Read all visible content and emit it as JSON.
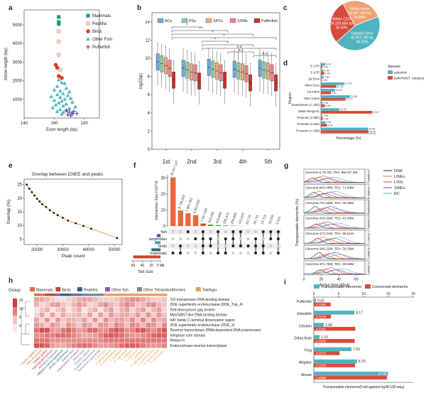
{
  "panels": {
    "a": {
      "letter": "a",
      "legend": [
        "Mammals",
        "Reptilia",
        "Birds",
        "Other Fish",
        "Pufferfish"
      ],
      "xlabel": "Exon length (bp)",
      "ylabel": "Intron length (bp)",
      "xticks": [
        "140",
        "160",
        "180"
      ],
      "yticks": [
        "1000",
        "2000",
        "3000",
        "4000",
        "5000"
      ]
    },
    "b": {
      "letter": "b",
      "legend": [
        "ACs",
        "PSs",
        "SPCs",
        "SSMs",
        "Pufferfish"
      ],
      "ylabel": "log2(bp)",
      "xticks": [
        "1st",
        "2nd",
        "3rd",
        "4th",
        "5th"
      ],
      "yticks": [
        "0",
        "2",
        "4",
        "6",
        "8",
        "10",
        "12",
        "14"
      ],
      "sig_labels": [
        "*",
        "*",
        "*",
        "*",
        "*",
        "*",
        "n.s",
        "n.s",
        "n.s"
      ]
    },
    "c": {
      "letter": "c",
      "slices": [
        {
          "label": "Outside Gene",
          "value": "40,952,700 bp",
          "pct": "44.26%"
        },
        {
          "label": "Within Intron",
          "value": "24,947,183 bp",
          "pct": "26.84%"
        },
        {
          "label": "Within CDS",
          "value": "26,328,684 bp",
          "pct": "28.40%"
        }
      ]
    },
    "d": {
      "letter": "d",
      "xlabel": "Percentage (%)",
      "ylabel": "Region",
      "legend_title": "Species",
      "legend": [
        "zebrafish",
        "pufferfish(T. rubripes)"
      ]
    },
    "e": {
      "letter": "e",
      "title": "Overlap between CNEE and peaks",
      "xlabel": "Peak count",
      "ylabel": "Overlap (%)",
      "xticks": [
        "20000",
        "30000",
        "40000",
        "50000"
      ],
      "yticks": [
        "5",
        "10",
        "15",
        "20",
        "25"
      ]
    },
    "f": {
      "letter": "f",
      "ylabel": "Intersection Size (×10^3)",
      "xlabel": "Set size",
      "xticks": [
        "60",
        "40",
        "20",
        "0 Mb"
      ],
      "set_ticks": [
        "0",
        "10",
        "20",
        "30"
      ],
      "sets": [
        "fish",
        "amphibian",
        "birds",
        "mammals"
      ]
    },
    "g": {
      "letter": "g",
      "legend": [
        "DNA",
        "LINEs",
        "LTRs",
        "SINEs",
        "RC"
      ],
      "xlabel": "Active time (Mya)",
      "ylabel": "Transposable elements (%)",
      "xticks": [
        "0",
        "20",
        "40",
        "60"
      ],
      "rows": [
        {
          "genome": "Genome:2.76 Gb; TEs: 650.87 Mb",
          "species": "H. sapiens"
        },
        {
          "genome": "Genome:863.48M; TEs: 71.83M",
          "species": "G. gallus"
        },
        {
          "genome": "Genome:731.62M; TEs: 48.38M",
          "species": "A. mississippiensis"
        },
        {
          "genome": "Genome:428.43M; TEs: 43.40M",
          "species": "X. tropicalis"
        },
        {
          "genome": "Genome:474.31M; TEs: 36.51M",
          "species": "D. rerio"
        },
        {
          "genome": "Genome:346.22M; TEs: 28.30M",
          "species": "O. latipes"
        },
        {
          "genome": "Genome:371.75M; TEs: 39.93M",
          "species": "T. rubripes"
        }
      ]
    },
    "h": {
      "letter": "h",
      "group_label": "Group",
      "groups": [
        "Mammals",
        "Birds",
        "Reptiles",
        "Other fish",
        "Other Tetraodontiformes",
        "Takifugu"
      ],
      "scale_ticks": [
        "15",
        "10",
        "5",
        "0"
      ],
      "domains": [
        "Tc5 transposase DNA-binding domain",
        "DDE superfamily endonuclease (DDE_Tnp_4)",
        "Retrotransposon gag protein",
        "Myb/SANT-like DNA-binding domain",
        "hAT family C-terminal dimerization region",
        "DDE superfamily endonuclease (DDE_3)",
        "Reverse transcriptase (RNA-dependent DNA polymerase)",
        "Integrase core domain",
        "RNase H",
        "Endonuclease-reverse transcriptase"
      ],
      "species": [
        "Homo sapiens",
        "Mus musculus",
        "Gallus gallus",
        "Taeniopygia guttata",
        "Xenopus tropicalis",
        "Alligator mississippiensis",
        "Anolis carolinensis",
        "Danio rerio",
        "Lepisosteus oculatus",
        "Mola mola",
        "Oryzias latipes",
        "Diodon holocanthus",
        "Tetraodon nigroviridis",
        "T. flavidus",
        "T. bimaculatus",
        "T. xanthopterus",
        "T. ocellatus",
        "T. niphobles",
        "T. rubripes",
        "T. obscurus",
        "T. pardalis",
        "T. alboplumbeus",
        "T. poecilonotus",
        "T. vermicularis",
        "T. stictonotus"
      ]
    },
    "i": {
      "letter": "i",
      "legend": [
        "Transposable elements",
        "Conserved elements"
      ],
      "xlabel": "Transposable elements(Fold against hg38-100 way)",
      "xticks": [
        "0",
        "5",
        "10",
        "15",
        "20"
      ]
    }
  },
  "colors": {
    "mammals": "#1a9e77",
    "reptilia": "#e8a38b",
    "birds": "#d93a2b",
    "other_fish": "#4db3c8",
    "pufferfish": "#5a3a8c",
    "teal": "#4fb4c0",
    "red": "#d94a3a",
    "orange": "#e8693a"
  },
  "chart_data": [
    {
      "panel": "a",
      "type": "scatter",
      "xlabel": "Exon length (bp)",
      "ylabel": "Intron length (bp)",
      "xlim": [
        140,
        190
      ],
      "ylim": [
        0,
        5800
      ],
      "series": [
        {
          "name": "Mammals",
          "points": [
            [
              163,
              5420
            ],
            [
              163,
              5150
            ],
            [
              163,
              5050
            ]
          ]
        },
        {
          "name": "Reptilia",
          "points": [
            [
              163,
              4650
            ],
            [
              163,
              4100
            ],
            [
              163,
              3400
            ],
            [
              164,
              2600
            ]
          ]
        },
        {
          "name": "Birds",
          "points": [
            [
              161,
              2850
            ],
            [
              162,
              2700
            ],
            [
              163,
              2250
            ],
            [
              165,
              2150
            ]
          ]
        },
        {
          "name": "Other Fish",
          "points": [
            [
              163,
              2050
            ],
            [
              165,
              1900
            ],
            [
              167,
              1850
            ],
            [
              162,
              1700
            ],
            [
              168,
              1600
            ],
            [
              160,
              1500
            ],
            [
              164,
              1450
            ],
            [
              170,
              1400
            ],
            [
              166,
              1300
            ],
            [
              162,
              1250
            ],
            [
              169,
              1200
            ],
            [
              158,
              1150
            ],
            [
              164,
              1100
            ],
            [
              171,
              1050
            ],
            [
              167,
              1000
            ],
            [
              160,
              950
            ],
            [
              165,
              900
            ],
            [
              172,
              850
            ],
            [
              163,
              800
            ],
            [
              168,
              750
            ],
            [
              161,
              700
            ],
            [
              166,
              650
            ],
            [
              174,
              600
            ],
            [
              159,
              550
            ],
            [
              170,
              500
            ],
            [
              164,
              450
            ],
            [
              168,
              400
            ],
            [
              162,
              350
            ],
            [
              166,
              300
            ],
            [
              172,
              250
            ],
            [
              165,
              200
            ]
          ]
        },
        {
          "name": "Pufferfish",
          "points": [
            [
              168,
              420
            ],
            [
              170,
              320
            ],
            [
              172,
              260
            ],
            [
              173,
              360
            ],
            [
              169,
              180
            ],
            [
              175,
              240
            ],
            [
              171,
              120
            ]
          ]
        }
      ]
    },
    {
      "panel": "b",
      "type": "box",
      "ylabel": "log2(bp)",
      "ylim": [
        0,
        15
      ],
      "categories": [
        "1st",
        "2nd",
        "3rd",
        "4th",
        "5th"
      ],
      "series": [
        {
          "name": "ACs",
          "medians": [
            9.6,
            8.9,
            9.0,
            8.8,
            8.9
          ]
        },
        {
          "name": "PSs",
          "medians": [
            9.4,
            8.7,
            8.8,
            8.6,
            8.7
          ]
        },
        {
          "name": "SPCs",
          "medians": [
            9.2,
            8.5,
            8.6,
            8.5,
            8.6
          ]
        },
        {
          "name": "SSMs",
          "medians": [
            8.9,
            8.4,
            8.4,
            8.3,
            8.4
          ]
        },
        {
          "name": "Pufferfish",
          "medians": [
            7.6,
            7.5,
            7.6,
            7.3,
            7.3
          ]
        }
      ]
    },
    {
      "panel": "c",
      "type": "pie",
      "labels": [
        "Outside Gene",
        "Within Intron",
        "Within CDS"
      ],
      "values": [
        44.26,
        26.84,
        28.4
      ]
    },
    {
      "panel": "d",
      "type": "bar",
      "categories": [
        "5' UTR",
        "3' UTR",
        "1st Exon",
        "Other Exon",
        "1st Intron",
        "Other Intron",
        "Downstream (<=300)",
        "Distal Intergenic",
        "Promoter (2-3kb)",
        "Promoter (1-2kb)",
        "Promoter (<=1kb)"
      ],
      "series": [
        {
          "name": "zebrafish",
          "values": [
            3.19,
            1.9,
            1.86,
            17.04,
            10.15,
            21.05,
            1.16,
            13.2,
            0.95,
            3.26,
            34.06
          ]
        },
        {
          "name": "pufferfish(T. rubripes)",
          "values": [
            1.0,
            2.4,
            0.5,
            11.15,
            7.22,
            17.77,
            2.84,
            37.07,
            1.26,
            4.39,
            34.4
          ]
        }
      ],
      "xlabel": "Percentage (%)"
    },
    {
      "panel": "e",
      "type": "line",
      "title": "Overlap between CNEE and peaks",
      "xlabel": "Peak count",
      "ylabel": "Overlap (%)",
      "xlim": [
        15000,
        53000
      ],
      "ylim": [
        3,
        27
      ],
      "x": [
        16000,
        17000,
        18000,
        19000,
        20000,
        21000,
        22000,
        23500,
        25000,
        26500,
        28000,
        30000,
        32000,
        35000,
        38000,
        41000,
        51000
      ],
      "y": [
        25.0,
        23.5,
        22.2,
        21.0,
        19.8,
        18.8,
        17.8,
        16.8,
        15.6,
        14.6,
        13.8,
        12.8,
        11.8,
        10.8,
        9.8,
        8.8,
        5.4
      ]
    },
    {
      "panel": "f",
      "type": "bar",
      "ylabel": "Intersection Size (×10^3)",
      "values": [
        30.417127,
        9.733203,
        7.961381,
        6.852603,
        1.557342,
        0.923292,
        0.615848,
        0.33597,
        0.204859,
        0.122623,
        0.069723,
        0.029741,
        0.014719,
        0.010035,
        0.005315
      ],
      "labels": [
        "30,417,127",
        "9,733,203",
        "7,961,381",
        "6,852,603",
        "1,557,342",
        "923,292",
        "615,848",
        "335,970",
        "204,859",
        "122,623",
        "69,723",
        "29,741",
        "14,719",
        "10,035",
        "5,315"
      ],
      "set_sizes": {
        "fish": 8,
        "amphibian": 12,
        "birds": 20,
        "mammals": 60
      }
    },
    {
      "panel": "i",
      "type": "bar",
      "xlabel": "Transposable elements(Fold against hg38-100 way)",
      "xlim": [
        0,
        20
      ],
      "categories": [
        "Pufferfish",
        "Zebrafish",
        "Chicken",
        "Zebra finch",
        "Frog",
        "Alligator",
        "Mouse"
      ],
      "series": [
        {
          "name": "Transposable elements",
          "values": [
            0.42,
            8.17,
            1.99,
            1.15,
            7.59,
            8.7,
            14.94
          ]
        },
        {
          "name": "Conserved elements",
          "values": [
            0.1355,
            0.1378,
            0.3331,
            0.3285,
            0.207,
            0.3318,
            0.5889
          ]
        }
      ],
      "te_labels": [
        "0.42",
        "8.17",
        "1.99",
        "1.15",
        "7.59",
        "8.70",
        "14.94"
      ],
      "ce_labels": [
        "0.1355",
        "0.1378",
        "0.3331",
        "0.3285",
        "0.2070",
        "0.3318",
        "0.5889"
      ]
    }
  ]
}
